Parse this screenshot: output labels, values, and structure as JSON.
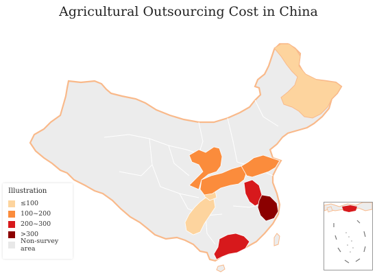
{
  "title": "Agricultural Outsourcing Cost in China",
  "legend": {
    "title": "Illustration",
    "items": [
      {
        "label": "≤100",
        "color": "#fdd49e"
      },
      {
        "label": "100~200",
        "color": "#fb8c3c"
      },
      {
        "label": "200~300",
        "color": "#d7191c"
      },
      {
        "label": ">300",
        "color": "#8b0000"
      },
      {
        "label": "Non-survey area",
        "color": "#e8e8e8"
      }
    ]
  },
  "colors": {
    "land": "#ececec",
    "border": "#f9b98a",
    "province_line": "#ffffff"
  }
}
